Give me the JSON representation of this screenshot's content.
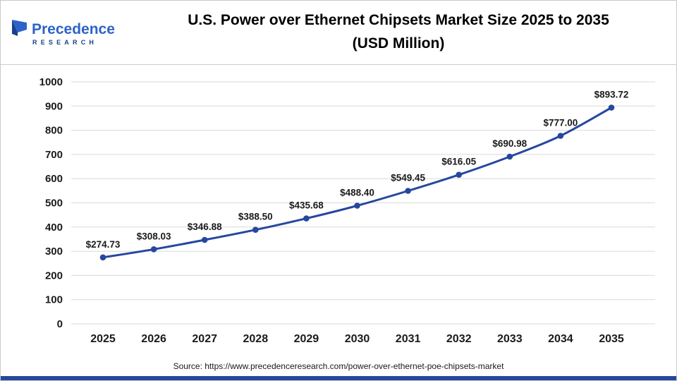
{
  "header": {
    "logo": {
      "name": "Precedence",
      "subtitle": "RESEARCH"
    },
    "title_line1": "U.S. Power over Ethernet Chipsets Market Size 2025 to 2035",
    "title_line2": "(USD Million)"
  },
  "footer": {
    "source": "Source: https://www.precedenceresearch.com/power-over-ethernet-poe-chipsets-market"
  },
  "chart_data": {
    "type": "line",
    "title": "U.S. Power over Ethernet Chipsets Market Size 2025 to 2035 (USD Million)",
    "categories": [
      "2025",
      "2026",
      "2027",
      "2028",
      "2029",
      "2030",
      "2031",
      "2032",
      "2033",
      "2034",
      "2035"
    ],
    "values": [
      274.73,
      308.03,
      346.88,
      388.5,
      435.68,
      488.4,
      549.45,
      616.05,
      690.98,
      777.0,
      893.72
    ],
    "labels": [
      "$274.73",
      "$308.03",
      "$346.88",
      "$388.50",
      "$435.68",
      "$488.40",
      "$549.45",
      "$616.05",
      "$690.98",
      "$777.00",
      "$893.72"
    ],
    "xlabel": "",
    "ylabel": "",
    "ylim": [
      0,
      1000
    ],
    "ytick_step": 100,
    "grid": true,
    "legend": "none",
    "line_color": "#26479e",
    "grid_color": "#d9d9d9",
    "tick_color": "#1a1a1a",
    "label_color": "#1a1a1a"
  }
}
